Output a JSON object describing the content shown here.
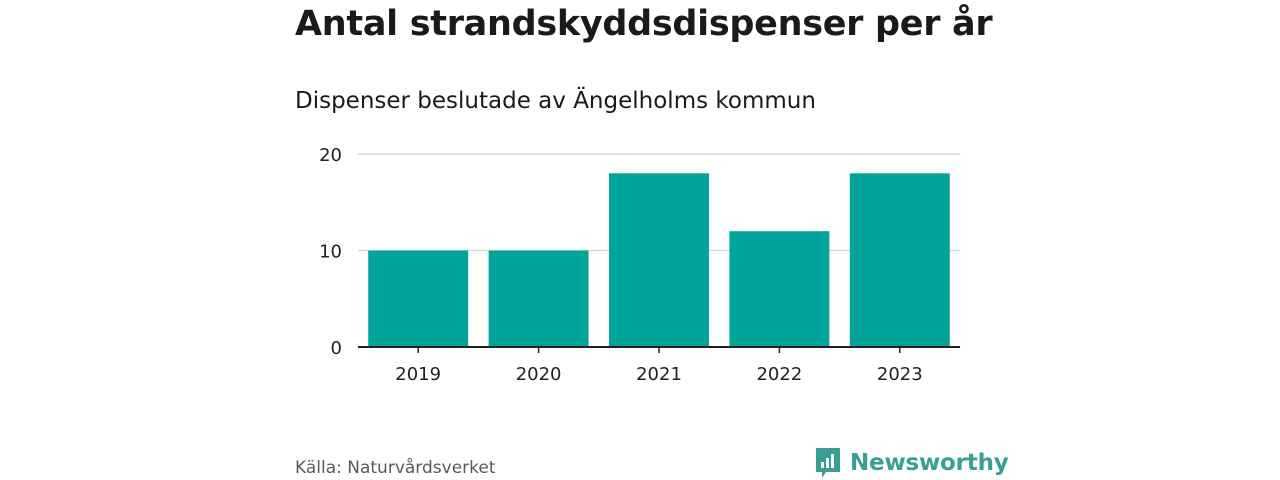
{
  "chart_data": {
    "type": "bar",
    "title": "Antal strandskyddsdispenser per år",
    "subtitle": "Dispenser beslutade av Ängelholms kommun",
    "categories": [
      "2019",
      "2020",
      "2021",
      "2022",
      "2023"
    ],
    "values": [
      10,
      10,
      18,
      12,
      18
    ],
    "ylim": [
      0,
      20
    ],
    "yticks": [
      "0",
      "10",
      "20"
    ],
    "xlabel": "",
    "ylabel": "",
    "grid": true,
    "bar_color": "#00a49a"
  },
  "footer": {
    "source": "Källa: Naturvårdsverket",
    "brand": "Newsworthy"
  },
  "colors": {
    "brand": "#3a9e94",
    "gridline": "#d9d9d9",
    "axis": "#222222"
  },
  "icons": {
    "brand_logo": "bar-chart-speech-bubble-icon"
  }
}
